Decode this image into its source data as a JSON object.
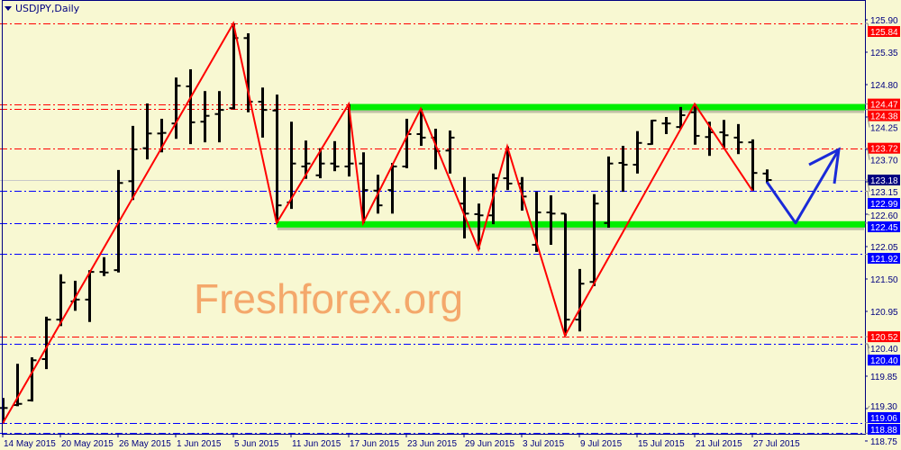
{
  "chart_data": {
    "type": "ohlc",
    "title": "USDJPY,Daily",
    "symbol": "USDJPY",
    "timeframe": "Daily",
    "ylim": [
      118.7,
      125.95
    ],
    "y_ticks": [
      "125.90",
      "125.35",
      "124.80",
      "124.25",
      "123.70",
      "123.15",
      "122.60",
      "122.05",
      "121.50",
      "120.95",
      "120.40",
      "119.85",
      "119.30",
      "118.75"
    ],
    "x_labels": [
      {
        "bar": 0,
        "text": "14 May 2015"
      },
      {
        "bar": 4,
        "text": "20 May 2015"
      },
      {
        "bar": 8,
        "text": "26 May 2015"
      },
      {
        "bar": 12,
        "text": "1 Jun 2015"
      },
      {
        "bar": 16,
        "text": "5 Jun 2015"
      },
      {
        "bar": 20,
        "text": "11 Jun 2015"
      },
      {
        "bar": 24,
        "text": "17 Jun 2015"
      },
      {
        "bar": 28,
        "text": "23 Jun 2015"
      },
      {
        "bar": 32,
        "text": "29 Jun 2015"
      },
      {
        "bar": 36,
        "text": "3 Jul 2015"
      },
      {
        "bar": 40,
        "text": "9 Jul 2015"
      },
      {
        "bar": 44,
        "text": "15 Jul 2015"
      },
      {
        "bar": 48,
        "text": "21 Jul 2015"
      },
      {
        "bar": 52,
        "text": "27 Jul 2015"
      }
    ],
    "ohlc": [
      [
        119.31,
        119.48,
        119.05,
        119.31
      ],
      [
        119.36,
        120.06,
        119.34,
        119.38
      ],
      [
        119.44,
        120.17,
        119.42,
        120.12
      ],
      [
        120.14,
        120.86,
        119.97,
        120.81
      ],
      [
        120.81,
        121.58,
        120.7,
        121.44
      ],
      [
        121.12,
        121.47,
        120.96,
        121.15
      ],
      [
        121.15,
        121.65,
        120.77,
        121.62
      ],
      [
        121.62,
        121.87,
        121.55,
        121.61
      ],
      [
        121.65,
        123.35,
        121.61,
        123.13
      ],
      [
        123.16,
        124.1,
        122.84,
        123.7
      ],
      [
        123.72,
        124.48,
        123.53,
        123.97
      ],
      [
        123.97,
        124.22,
        123.65,
        123.98
      ],
      [
        124.14,
        124.92,
        123.88,
        124.78
      ],
      [
        124.77,
        125.06,
        123.79,
        124.16
      ],
      [
        124.17,
        124.69,
        123.82,
        124.27
      ],
      [
        124.3,
        124.69,
        123.82,
        124.37
      ],
      [
        124.4,
        125.84,
        124.38,
        125.59
      ],
      [
        125.59,
        125.67,
        124.33,
        124.51
      ],
      [
        124.51,
        124.75,
        123.9,
        124.37
      ],
      [
        124.36,
        124.63,
        122.45,
        122.75
      ],
      [
        122.8,
        124.17,
        122.69,
        123.46
      ],
      [
        123.41,
        123.85,
        123.2,
        123.46
      ],
      [
        123.26,
        123.72,
        123.21,
        123.46
      ],
      [
        123.46,
        123.84,
        123.33,
        123.41
      ],
      [
        123.41,
        124.47,
        123.24,
        123.46
      ],
      [
        123.46,
        123.65,
        122.45,
        123.01
      ],
      [
        123.0,
        123.27,
        122.61,
        122.75
      ],
      [
        123.01,
        123.47,
        122.61,
        123.41
      ],
      [
        123.41,
        124.22,
        123.38,
        123.96
      ],
      [
        123.96,
        124.39,
        123.76,
        123.9
      ],
      [
        123.9,
        124.05,
        123.36,
        123.67
      ],
      [
        123.68,
        124.02,
        123.29,
        123.9
      ],
      [
        122.78,
        123.23,
        122.19,
        122.61
      ],
      [
        122.6,
        122.78,
        122.0,
        122.58
      ],
      [
        122.58,
        123.29,
        122.43,
        123.21
      ],
      [
        123.21,
        123.75,
        123.01,
        123.12
      ],
      [
        123.12,
        123.23,
        122.66,
        122.9
      ],
      [
        122.08,
        122.98,
        121.96,
        122.63
      ],
      [
        122.63,
        122.92,
        122.08,
        122.61
      ],
      [
        122.61,
        122.61,
        120.54,
        120.81
      ],
      [
        120.81,
        121.67,
        120.61,
        121.42
      ],
      [
        121.45,
        122.94,
        121.38,
        122.78
      ],
      [
        122.45,
        123.58,
        122.37,
        123.46
      ],
      [
        123.47,
        123.76,
        122.98,
        123.44
      ],
      [
        123.44,
        124.01,
        123.29,
        123.81
      ],
      [
        123.79,
        124.2,
        123.78,
        124.19
      ],
      [
        124.14,
        124.25,
        123.96,
        124.14
      ],
      [
        124.08,
        124.42,
        124.05,
        124.28
      ],
      [
        124.33,
        124.47,
        123.78,
        123.93
      ],
      [
        123.91,
        124.17,
        123.59,
        123.99
      ],
      [
        123.99,
        124.2,
        123.72,
        123.94
      ],
      [
        123.9,
        124.13,
        123.62,
        123.82
      ],
      [
        123.82,
        123.87,
        123.0,
        123.3
      ],
      [
        123.29,
        123.36,
        123.13,
        123.18
      ]
    ],
    "zigzag": [
      [
        0,
        119.05
      ],
      [
        16,
        125.84
      ],
      [
        19,
        122.45
      ],
      [
        24,
        124.47
      ],
      [
        25,
        122.45
      ],
      [
        29,
        124.39
      ],
      [
        33,
        122.0
      ],
      [
        35,
        123.75
      ],
      [
        39,
        120.54
      ],
      [
        48,
        124.47
      ],
      [
        52,
        123.0
      ]
    ],
    "levels": [
      {
        "price": 125.84,
        "label": "125.84",
        "color": "#ff0000",
        "style": "dashdot"
      },
      {
        "price": 124.47,
        "label": "124.47",
        "color": "#ff0000",
        "style": "dashdot"
      },
      {
        "price": 124.38,
        "label": "124.38",
        "color": "#ff0000",
        "style": "dashdot"
      },
      {
        "price": 123.72,
        "label": "123.72",
        "color": "#ff0000",
        "style": "dashdot"
      },
      {
        "price": 123.18,
        "label": "123.18",
        "color": "#000080",
        "style": "bid"
      },
      {
        "price": 122.99,
        "label": "122.99",
        "color": "#0000ff",
        "style": "dashdot"
      },
      {
        "price": 122.45,
        "label": "122.45",
        "color": "#0000ff",
        "style": "dashdot"
      },
      {
        "price": 121.92,
        "label": "121.92",
        "color": "#0000ff",
        "style": "dashdot"
      },
      {
        "price": 120.52,
        "label": "120.52",
        "color": "#ff0000",
        "style": "dashdot"
      },
      {
        "price": 120.4,
        "label": "120.40",
        "color": "#0000ff",
        "style": "dashdot"
      },
      {
        "price": 119.06,
        "label": "119.06",
        "color": "#0000ff",
        "style": "dashdot"
      },
      {
        "price": 118.88,
        "label": "118.88",
        "color": "#0000ff",
        "style": "dashdot"
      }
    ],
    "zones": [
      {
        "price": 124.41,
        "from_bar": 24,
        "color": "#00ee00"
      },
      {
        "price": 122.42,
        "from_bar": 19,
        "color": "#00ee00"
      }
    ],
    "forecast_arrow": {
      "color": "#1a2ad8",
      "points": [
        [
          53,
          123.15
        ],
        [
          55,
          122.45
        ],
        [
          58,
          123.7
        ]
      ]
    },
    "colors": {
      "background": "#f8f8d2",
      "bars": "#000000",
      "zigzag": "#ff0000",
      "axis": "#000080"
    }
  },
  "watermark": "Freshforex.org"
}
